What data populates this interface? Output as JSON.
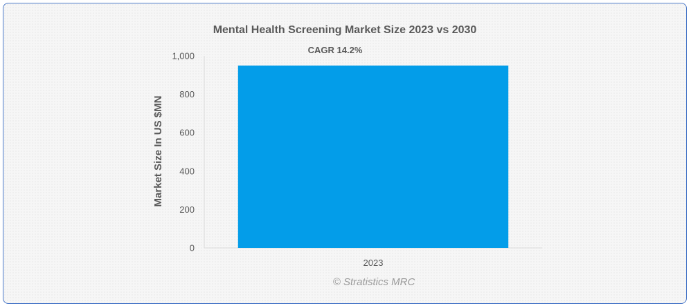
{
  "chart_data": {
    "type": "bar",
    "title": "Mental Health Screening Market Size 2023 vs 2030",
    "annotation": "CAGR 14.2%",
    "categories": [
      "2023"
    ],
    "values": [
      950
    ],
    "ylabel": "Market Size In US $MN",
    "xlabel": "",
    "ylim": [
      0,
      1000
    ],
    "yticks": [
      0,
      200,
      400,
      600,
      800,
      1000
    ],
    "ytick_labels": [
      "0",
      "200",
      "400",
      "600",
      "800",
      "1,000"
    ],
    "grid": false,
    "bar_color": "#039de9"
  },
  "credit": "© Stratistics MRC"
}
